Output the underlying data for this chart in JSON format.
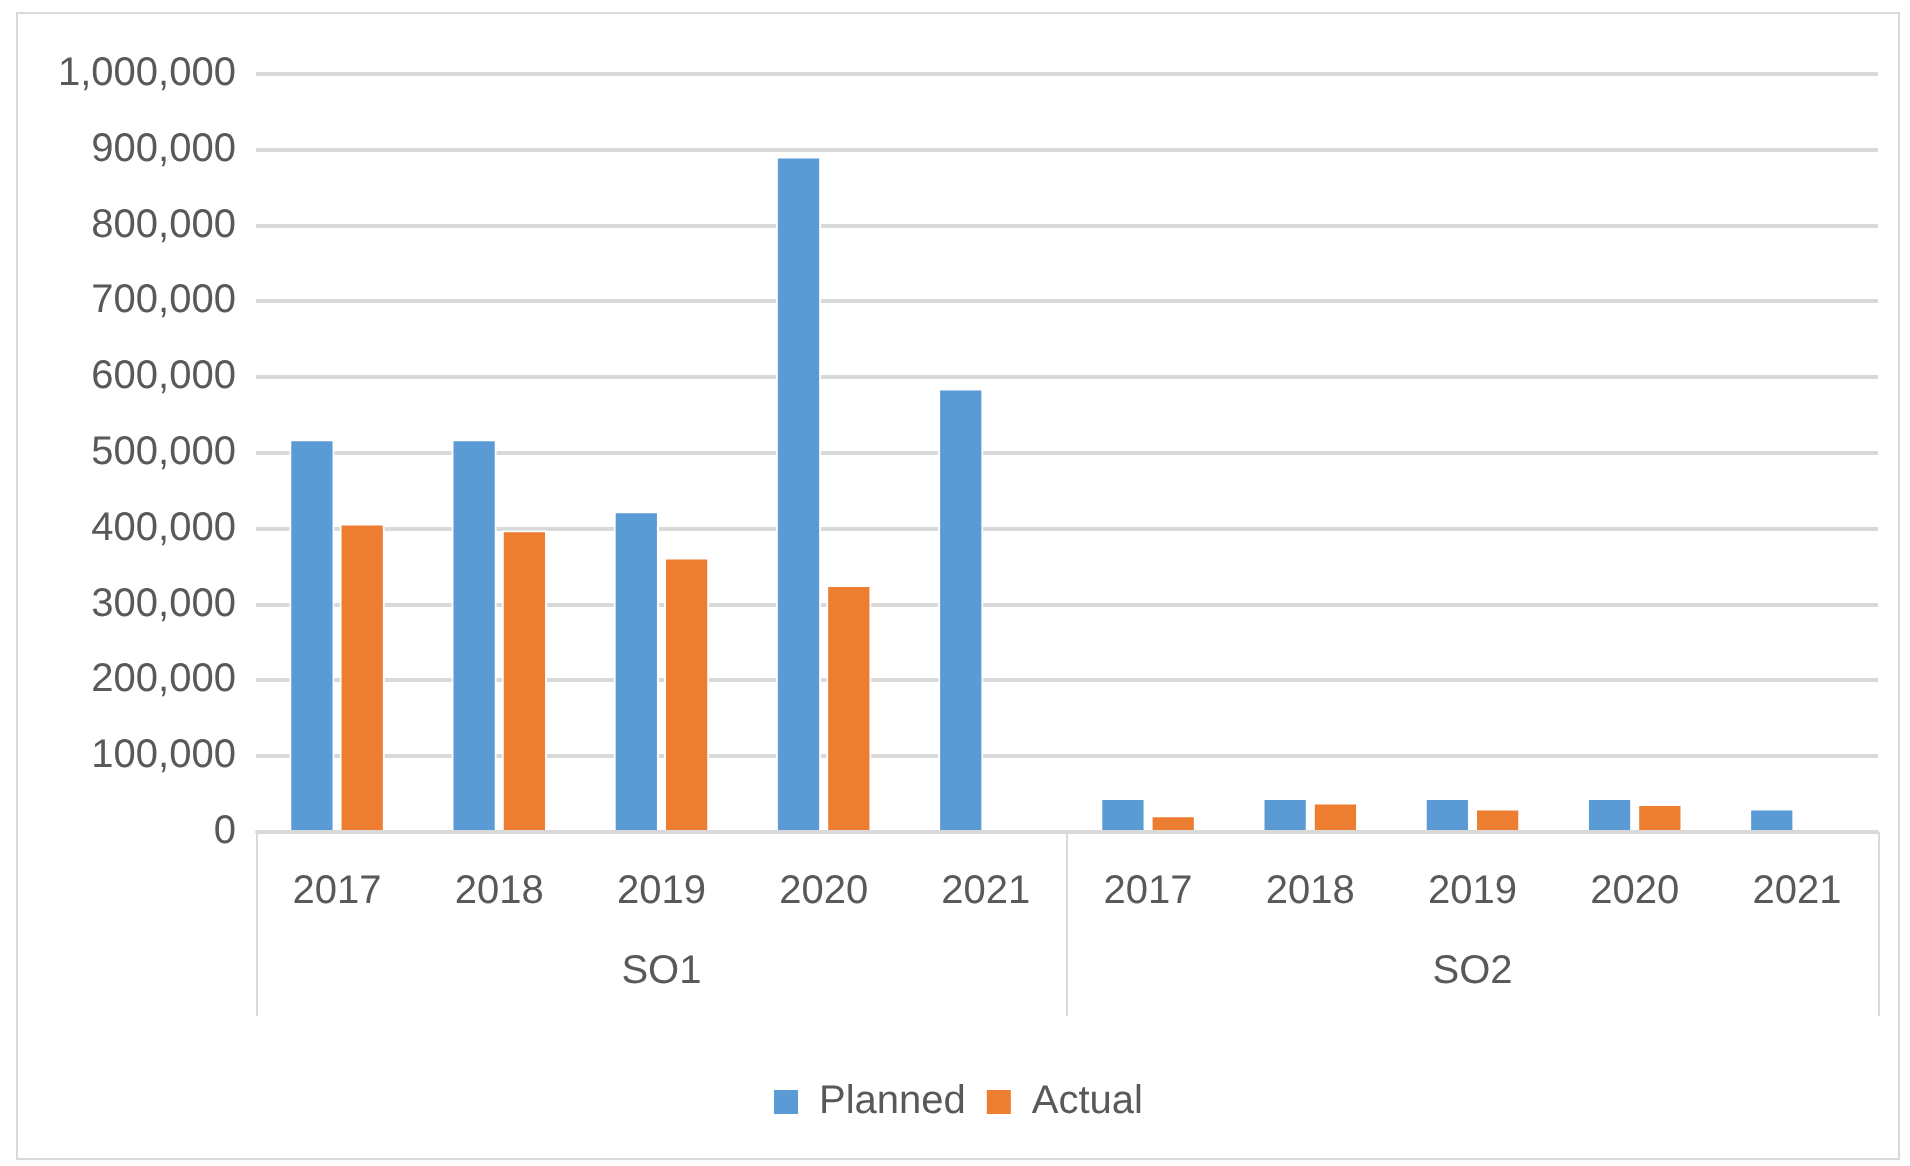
{
  "chart_data": {
    "type": "bar",
    "categories": [
      "2017",
      "2018",
      "2019",
      "2020",
      "2021",
      "2017",
      "2018",
      "2019",
      "2020",
      "2021"
    ],
    "annotations": [
      "SO1",
      "SO2"
    ],
    "series": [
      {
        "name": "Planned",
        "color": "#5b9bd5",
        "values": [
          518000,
          518000,
          423000,
          891000,
          585000,
          45000,
          45000,
          45000,
          45000,
          31000
        ]
      },
      {
        "name": "Actual",
        "color": "#ed7d31",
        "values": [
          407000,
          398000,
          362000,
          326000,
          null,
          22000,
          39000,
          31000,
          37000,
          null
        ]
      }
    ],
    "ylim": [
      0,
      1000000
    ],
    "yticks": [
      0,
      {
        "value": 100000,
        "label": "100,000"
      },
      {
        "value": 200000,
        "label": "200,000"
      },
      {
        "value": 300000,
        "label": "300,000"
      },
      {
        "value": 400000,
        "label": "400,000"
      },
      {
        "value": 500000,
        "label": "500,000"
      },
      {
        "value": 600000,
        "label": "600,000"
      },
      {
        "value": 700000,
        "label": "700,000"
      },
      {
        "value": 800000,
        "label": "800,000"
      },
      {
        "value": 900000,
        "label": "900,000"
      },
      {
        "value": 1000000,
        "label": "1,000,000"
      }
    ],
    "grid": "y",
    "legend": "bottom"
  }
}
